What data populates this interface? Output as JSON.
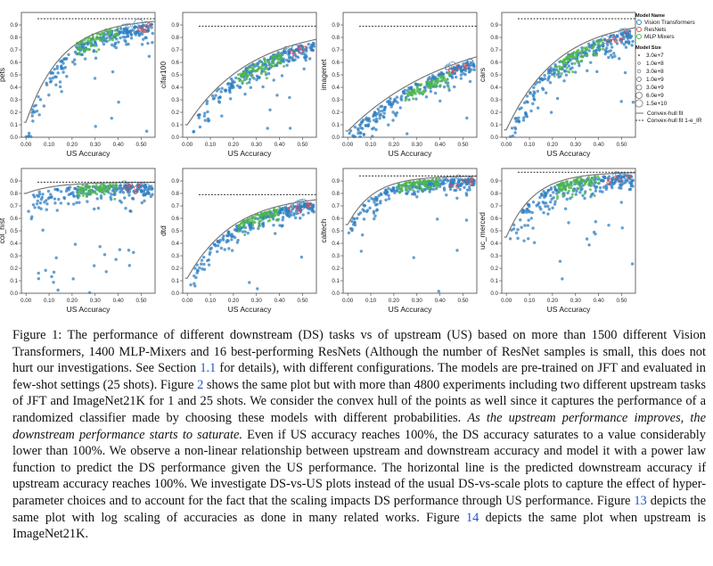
{
  "figure": {
    "x_label": "US Accuracy",
    "x_ticks": [
      "0.00",
      "0.10",
      "0.20",
      "0.30",
      "0.40",
      "0.50"
    ],
    "y_ticks": [
      "0.0",
      "0.1",
      "0.2",
      "0.3",
      "0.4",
      "0.5",
      "0.6",
      "0.7",
      "0.8",
      "0.9"
    ],
    "legend": {
      "model_name_title": "Model Name",
      "model_names": [
        "Vision Transformers",
        "ResNets",
        "MLP Mixers"
      ],
      "model_size_title": "Model Size",
      "model_sizes": [
        "3.0e+7",
        "1.0e+8",
        "3.0e+8",
        "1.0e+9",
        "3.0e+9",
        "6.0e+9",
        "1.5e+10"
      ],
      "fit_items": [
        "Convex-hull fit",
        "Convex-hull fit 1-e_IR"
      ]
    },
    "colors": {
      "vit": "#2f7fc1",
      "resnet": "#e8484a",
      "mixer": "#4cb848",
      "fit": "#7a7a7a"
    }
  },
  "chart_data": [
    {
      "type": "scatter",
      "ylabel": "pets",
      "xlabel": "US Accuracy",
      "xlim": [
        -0.02,
        0.56
      ],
      "ylim": [
        0,
        1
      ],
      "fit_saturation": 0.95
    },
    {
      "type": "scatter",
      "ylabel": "cifar100",
      "xlabel": "US Accuracy",
      "xlim": [
        -0.02,
        0.56
      ],
      "ylim": [
        0,
        1
      ],
      "fit_saturation": 0.89
    },
    {
      "type": "scatter",
      "ylabel": "imagenet",
      "xlabel": "US Accuracy",
      "xlim": [
        -0.02,
        0.56
      ],
      "ylim": [
        0,
        1
      ],
      "fit_saturation": 0.89
    },
    {
      "type": "scatter",
      "ylabel": "cars",
      "xlabel": "US Accuracy",
      "xlim": [
        -0.02,
        0.56
      ],
      "ylim": [
        0,
        1
      ],
      "fit_saturation": 0.95
    },
    {
      "type": "scatter",
      "ylabel": "col_hist",
      "xlabel": "US Accuracy",
      "xlim": [
        -0.02,
        0.56
      ],
      "ylim": [
        0,
        1
      ],
      "fit_saturation": 0.89
    },
    {
      "type": "scatter",
      "ylabel": "dtd",
      "xlabel": "US Accuracy",
      "xlim": [
        -0.02,
        0.56
      ],
      "ylim": [
        0,
        1
      ],
      "fit_saturation": 0.79
    },
    {
      "type": "scatter",
      "ylabel": "caltech",
      "xlabel": "US Accuracy",
      "xlim": [
        -0.02,
        0.56
      ],
      "ylim": [
        0,
        1
      ],
      "fit_saturation": 0.94
    },
    {
      "type": "scatter",
      "ylabel": "uc_merced",
      "xlabel": "US Accuracy",
      "xlim": [
        -0.02,
        0.56
      ],
      "ylim": [
        0,
        1
      ],
      "fit_saturation": 0.97
    }
  ],
  "caption": {
    "p1": "Figure 1: The performance of different downstream (DS) tasks vs of upstream (US) based on more than 1500 different Vision Transformers, 1400 MLP-Mixers and 16 best-performing ResNets (Although the number of ResNet samples is small, this does not hurt our investigations. See Section ",
    "ref1": "1.1",
    "p2": " for details), with different configurations. The models are pre-trained on JFT and evaluated in few-shot settings (25 shots). Figure ",
    "ref2": "2",
    "p3": " shows the same plot but with more than 4800 experiments including two different upstream tasks of JFT and ImageNet21K for 1 and 25 shots. We consider the convex hull of the points as well since it captures the performance of a randomized classifier made by choosing these models with different probabilities. ",
    "italic": "As the upstream performance improves, the downstream performance starts to saturate.",
    "p4": " Even if US accuracy reaches 100%, the DS accuracy saturates to a value considerably lower than 100%. We observe a non-linear relationship between upstream and downstream accuracy and model it with a power law function to predict the DS performance given the US performance. The horizontal line is the predicted downstream accuracy if upstream accuracy reaches 100%. We investigate DS-vs-US plots instead of the usual DS-vs-scale plots to capture the effect of hyper-parameter choices and to account for the fact that the scaling impacts DS performance through US performance. Figure ",
    "ref3": "13",
    "p5": " depicts the same plot with log scaling of accuracies as done in many related works. Figure ",
    "ref4": "14",
    "p6": " depicts the same plot when upstream is ImageNet21K."
  }
}
